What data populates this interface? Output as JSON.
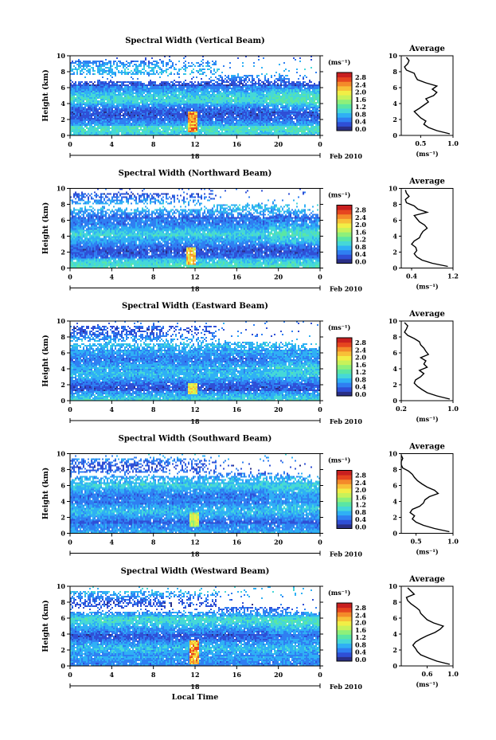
{
  "figure": {
    "xlabel_bottom": "Local Time",
    "date_label": "Feb 2010",
    "colorbar_unit": "(ms⁻¹)",
    "avg_xlabel": "(ms⁻¹)",
    "avg_title": "Average"
  },
  "colormap": [
    "#2a2f86",
    "#2f4fd6",
    "#2f7ff2",
    "#2fb0f5",
    "#45d8d8",
    "#5ae6a4",
    "#8ef07a",
    "#c8f25a",
    "#f2ee46",
    "#f8c038",
    "#f48a2a",
    "#e6451f",
    "#c81f1f"
  ],
  "chart_data": [
    {
      "type": "heatmap",
      "title": "Spectral Width (Vertical Beam)",
      "ylabel": "Height (km)",
      "x_ticks": [
        "0",
        "4",
        "8",
        "12",
        "16",
        "20",
        "0"
      ],
      "y_ticks": [
        "0",
        "2",
        "4",
        "6",
        "8",
        "10"
      ],
      "xlim": [
        0,
        24
      ],
      "ylim": [
        0,
        10
      ],
      "day_label": "18",
      "colorbar_ticks": [
        "2.8",
        "2.4",
        "2.0",
        "1.6",
        "1.2",
        "0.8",
        "0.4",
        "0.0"
      ],
      "colorbar_range": [
        0.0,
        2.8
      ],
      "upper_gap_km": [
        7.0,
        7.8
      ],
      "peak": {
        "hour": 11.7,
        "height_km": [
          0.6,
          3.0
        ],
        "value": 2.6
      },
      "average_profile": {
        "title": "Average",
        "xlim": [
          0.2,
          1.0
        ],
        "x_ticks": [
          "0.5",
          "1.0"
        ],
        "y_ticks": [
          "0",
          "2",
          "4",
          "6",
          "8",
          "10"
        ],
        "height_km": [
          0.2,
          0.6,
          1.0,
          1.4,
          1.8,
          2.2,
          2.6,
          3.0,
          3.4,
          3.8,
          4.2,
          4.6,
          5.0,
          5.4,
          5.8,
          6.2,
          6.6,
          7.0,
          7.4,
          7.8,
          8.2,
          8.6,
          9.0,
          9.4,
          9.8
        ],
        "values": [
          0.95,
          0.75,
          0.62,
          0.55,
          0.58,
          0.5,
          0.45,
          0.4,
          0.48,
          0.55,
          0.62,
          0.58,
          0.7,
          0.75,
          0.68,
          0.75,
          0.58,
          0.45,
          0.42,
          0.4,
          0.28,
          0.25,
          0.3,
          0.32,
          0.28
        ]
      }
    },
    {
      "type": "heatmap",
      "title": "Spectral Width (Northward Beam)",
      "ylabel": "Height (km)",
      "x_ticks": [
        "0",
        "4",
        "8",
        "12",
        "16",
        "20",
        "0"
      ],
      "y_ticks": [
        "0",
        "2",
        "4",
        "6",
        "8",
        "10"
      ],
      "xlim": [
        0,
        24
      ],
      "ylim": [
        0,
        10
      ],
      "day_label": "18",
      "colorbar_ticks": [
        "2.8",
        "2.4",
        "2.0",
        "1.6",
        "1.2",
        "0.8",
        "0.4",
        "0.0"
      ],
      "colorbar_range": [
        0.0,
        2.8
      ],
      "upper_gap_km": [
        7.6,
        8.2
      ],
      "peak": {
        "hour": 11.6,
        "height_km": [
          0.6,
          2.6
        ],
        "value": 2.4
      },
      "average_profile": {
        "title": "Average",
        "xlim": [
          0.2,
          1.2
        ],
        "x_ticks": [
          "0.4",
          "1.2"
        ],
        "y_ticks": [
          "0",
          "2",
          "4",
          "6",
          "8",
          "10"
        ],
        "height_km": [
          0.2,
          0.6,
          1.0,
          1.4,
          1.8,
          2.2,
          2.6,
          3.0,
          3.4,
          3.8,
          4.2,
          4.6,
          5.0,
          5.4,
          5.8,
          6.2,
          6.6,
          7.0,
          7.4,
          7.8,
          8.2,
          8.6,
          9.0,
          9.4,
          9.8
        ],
        "values": [
          1.1,
          0.8,
          0.6,
          0.5,
          0.45,
          0.5,
          0.48,
          0.4,
          0.45,
          0.55,
          0.58,
          0.62,
          0.7,
          0.65,
          0.55,
          0.5,
          0.45,
          0.7,
          0.52,
          0.45,
          0.3,
          0.28,
          0.35,
          0.3,
          0.28
        ]
      }
    },
    {
      "type": "heatmap",
      "title": "Spectral Width (Eastward Beam)",
      "ylabel": "Height (km)",
      "x_ticks": [
        "0",
        "4",
        "8",
        "12",
        "16",
        "20",
        "0"
      ],
      "y_ticks": [
        "0",
        "2",
        "4",
        "6",
        "8",
        "10"
      ],
      "xlim": [
        0,
        24
      ],
      "ylim": [
        0,
        10
      ],
      "day_label": "18",
      "colorbar_ticks": [
        "2.8",
        "2.4",
        "2.0",
        "1.6",
        "1.2",
        "0.8",
        "0.4",
        "0.0"
      ],
      "colorbar_range": [
        0.0,
        2.8
      ],
      "upper_gap_km": [
        7.2,
        7.6
      ],
      "peak": {
        "hour": 11.7,
        "height_km": [
          1.0,
          2.2
        ],
        "value": 2.2
      },
      "average_profile": {
        "title": "Average",
        "xlim": [
          0.2,
          1.0
        ],
        "x_ticks": [
          "0.2",
          "1.0"
        ],
        "y_ticks": [
          "0",
          "2",
          "4",
          "6",
          "8",
          "10"
        ],
        "height_km": [
          0.2,
          0.6,
          1.0,
          1.4,
          1.8,
          2.2,
          2.6,
          3.0,
          3.4,
          3.8,
          4.2,
          4.6,
          5.0,
          5.4,
          5.8,
          6.2,
          6.6,
          7.0,
          7.4,
          7.8,
          8.2,
          8.6,
          9.0,
          9.4,
          9.8
        ],
        "values": [
          0.95,
          0.75,
          0.6,
          0.52,
          0.45,
          0.4,
          0.42,
          0.5,
          0.55,
          0.48,
          0.6,
          0.55,
          0.58,
          0.5,
          0.62,
          0.58,
          0.55,
          0.5,
          0.48,
          0.4,
          0.3,
          0.25,
          0.28,
          0.3,
          0.25
        ]
      }
    },
    {
      "type": "heatmap",
      "title": "Spectral Width (Southward Beam)",
      "ylabel": "Height (km)",
      "x_ticks": [
        "0",
        "4",
        "8",
        "12",
        "16",
        "20",
        "0"
      ],
      "y_ticks": [
        "0",
        "2",
        "4",
        "6",
        "8",
        "10"
      ],
      "xlim": [
        0,
        24
      ],
      "ylim": [
        0,
        10
      ],
      "day_label": "18",
      "colorbar_ticks": [
        "2.8",
        "2.4",
        "2.0",
        "1.6",
        "1.2",
        "0.8",
        "0.4",
        "0.0"
      ],
      "colorbar_range": [
        0.0,
        2.8
      ],
      "upper_gap_km": [
        7.2,
        7.8
      ],
      "peak": {
        "hour": 11.8,
        "height_km": [
          1.0,
          2.6
        ],
        "value": 2.0
      },
      "average_profile": {
        "title": "Average",
        "xlim": [
          0.3,
          1.0
        ],
        "x_ticks": [
          "0.5",
          "1.0"
        ],
        "y_ticks": [
          "0",
          "2",
          "4",
          "6",
          "8",
          "10"
        ],
        "height_km": [
          0.2,
          0.6,
          1.0,
          1.4,
          1.8,
          2.2,
          2.6,
          3.0,
          3.4,
          3.8,
          4.2,
          4.6,
          5.0,
          5.4,
          5.8,
          6.2,
          6.6,
          7.0,
          7.4,
          7.8,
          8.2,
          8.6,
          9.0,
          9.4,
          9.8
        ],
        "values": [
          0.95,
          0.75,
          0.6,
          0.5,
          0.45,
          0.48,
          0.42,
          0.45,
          0.55,
          0.6,
          0.62,
          0.68,
          0.8,
          0.75,
          0.65,
          0.58,
          0.52,
          0.48,
          0.45,
          0.4,
          0.32,
          0.28,
          0.3,
          0.32,
          0.3
        ]
      }
    },
    {
      "type": "heatmap",
      "title": "Spectral Width (Westward Beam)",
      "ylabel": "Height (km)",
      "x_ticks": [
        "0",
        "4",
        "8",
        "12",
        "16",
        "20",
        "0"
      ],
      "y_ticks": [
        "0",
        "2",
        "4",
        "6",
        "8",
        "10"
      ],
      "xlim": [
        0,
        24
      ],
      "ylim": [
        0,
        10
      ],
      "day_label": "18",
      "colorbar_ticks": [
        "2.8",
        "2.4",
        "2.0",
        "1.6",
        "1.2",
        "0.8",
        "0.4",
        "0.0"
      ],
      "colorbar_range": [
        0.0,
        2.8
      ],
      "upper_gap_km": [
        7.0,
        7.5
      ],
      "peak": {
        "hour": 11.8,
        "height_km": [
          0.4,
          3.2
        ],
        "value": 2.6
      },
      "average_profile": {
        "title": "Average",
        "xlim": [
          0.2,
          1.0
        ],
        "x_ticks": [
          "0.6",
          "1.0"
        ],
        "y_ticks": [
          "0",
          "2",
          "4",
          "6",
          "8",
          "10"
        ],
        "height_km": [
          0.2,
          0.6,
          1.0,
          1.4,
          1.8,
          2.2,
          2.6,
          3.0,
          3.4,
          3.8,
          4.2,
          4.6,
          5.0,
          5.4,
          5.8,
          6.2,
          6.6,
          7.0,
          7.4,
          7.8,
          8.2,
          8.6,
          9.0,
          9.4,
          9.8
        ],
        "values": [
          0.95,
          0.75,
          0.62,
          0.5,
          0.45,
          0.42,
          0.38,
          0.42,
          0.5,
          0.6,
          0.72,
          0.8,
          0.85,
          0.7,
          0.6,
          0.55,
          0.5,
          0.48,
          0.42,
          0.35,
          0.3,
          0.28,
          0.4,
          0.35,
          0.3
        ]
      }
    }
  ]
}
